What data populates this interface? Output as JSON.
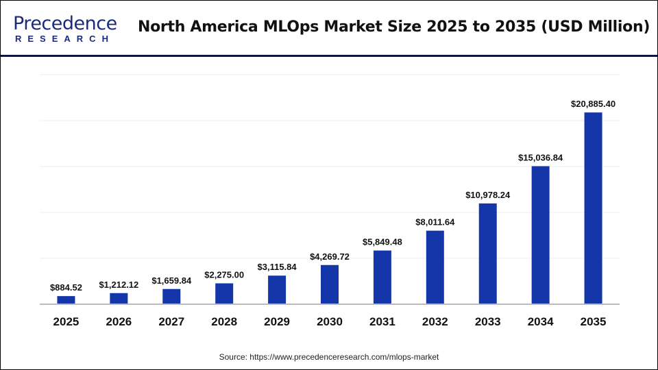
{
  "header": {
    "logo_top": "Precedence",
    "logo_bottom": "RESEARCH",
    "title": "North America MLOps Market Size 2025 to 2035 (USD Million)"
  },
  "source": "Source: https://www.precedenceresearch.com/mlops-market",
  "chart_data": {
    "type": "bar",
    "title": "North America MLOps Market Size 2025 to 2035 (USD Million)",
    "categories": [
      "2025",
      "2026",
      "2027",
      "2028",
      "2029",
      "2030",
      "2031",
      "2032",
      "2033",
      "2034",
      "2035"
    ],
    "values": [
      884.52,
      1212.12,
      1659.84,
      2275.0,
      3115.84,
      4269.72,
      5849.48,
      8011.64,
      10978.24,
      15036.84,
      20885.4
    ],
    "labels": [
      "$884.52",
      "$1,212.12",
      "$1,659.84",
      "$2,275.00",
      "$3,115.84",
      "$4,269.72",
      "$5,849.48",
      "$8,011.64",
      "$10,978.24",
      "$15,036.84",
      "$20,885.40"
    ],
    "ylim": [
      0,
      25000
    ],
    "grid": true,
    "bar_color": "#1536a8"
  }
}
